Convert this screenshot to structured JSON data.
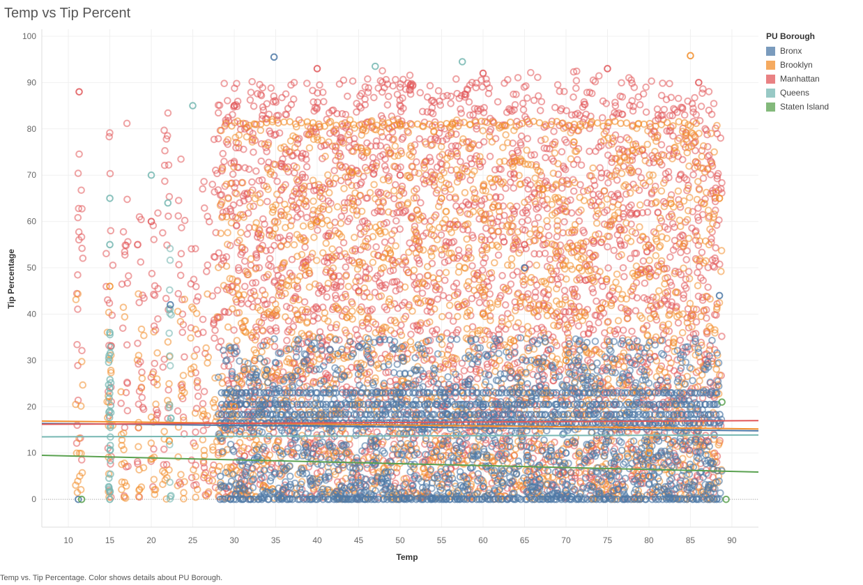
{
  "page": {
    "caption": "Temp vs. Tip Percentage.  Color shows details about PU Borough."
  },
  "chart_data": {
    "type": "scatter",
    "title": "Temp vs Tip Percent",
    "xlabel": "Temp",
    "ylabel": "Tip Percentage",
    "xlim": [
      6.8,
      93.2
    ],
    "ylim": [
      -6,
      101.5
    ],
    "x_ticks": [
      10,
      15,
      20,
      25,
      30,
      35,
      40,
      45,
      50,
      55,
      60,
      65,
      70,
      75,
      80,
      85,
      90
    ],
    "y_ticks": [
      0,
      10,
      20,
      30,
      40,
      50,
      60,
      70,
      80,
      90,
      100
    ],
    "grid": true,
    "marker": "hollow-circle",
    "legend_title": "PU Borough",
    "legend_position": "right",
    "series": [
      {
        "name": "Bronx",
        "color": "#4e79a7",
        "trend": {
          "x": [
            6.8,
            93.2
          ],
          "y": [
            16.4,
            14.8
          ]
        },
        "sample_points": [
          [
            34.8,
            95.5
          ],
          [
            11.2,
            0
          ],
          [
            50,
            23
          ],
          [
            60,
            20
          ],
          [
            70,
            10
          ],
          [
            80,
            5
          ],
          [
            45,
            33
          ],
          [
            65,
            50
          ],
          [
            22.3,
            42
          ],
          [
            88.5,
            44
          ]
        ]
      },
      {
        "name": "Brooklyn",
        "color": "#f28e2b",
        "trend": {
          "x": [
            6.8,
            93.2
          ],
          "y": [
            16.9,
            15.2
          ]
        },
        "sample_points": [
          [
            85,
            95.8
          ],
          [
            50,
            81
          ],
          [
            40,
            60
          ],
          [
            60,
            40
          ],
          [
            70,
            30
          ],
          [
            55,
            65
          ],
          [
            15,
            46
          ],
          [
            30,
            20
          ],
          [
            80,
            10
          ],
          [
            88.5,
            65
          ]
        ]
      },
      {
        "name": "Manhattan",
        "color": "#e15759",
        "trend": {
          "x": [
            6.8,
            93.2
          ],
          "y": [
            16.2,
            17.0
          ]
        },
        "sample_points": [
          [
            11.3,
            88
          ],
          [
            40,
            93
          ],
          [
            60,
            92
          ],
          [
            75,
            93
          ],
          [
            30,
            85
          ],
          [
            50,
            70
          ],
          [
            65,
            55
          ],
          [
            20,
            60
          ],
          [
            86,
            90
          ],
          [
            45,
            45
          ]
        ]
      },
      {
        "name": "Queens",
        "color": "#76b7b2",
        "trend": {
          "x": [
            6.8,
            93.2
          ],
          "y": [
            13.5,
            13.9
          ]
        },
        "sample_points": [
          [
            57.5,
            94.5
          ],
          [
            15,
            65
          ],
          [
            15,
            55
          ],
          [
            15,
            36
          ],
          [
            15,
            24
          ],
          [
            20,
            70
          ],
          [
            25,
            85
          ],
          [
            22,
            64
          ],
          [
            15,
            0
          ],
          [
            47,
            93.5
          ]
        ]
      },
      {
        "name": "Staten Island",
        "color": "#59a14f",
        "trend": {
          "x": [
            6.8,
            93.2
          ],
          "y": [
            9.5,
            5.9
          ]
        },
        "sample_points": [
          [
            89.3,
            0
          ],
          [
            88.8,
            21
          ],
          [
            11.6,
            0
          ]
        ]
      }
    ]
  }
}
